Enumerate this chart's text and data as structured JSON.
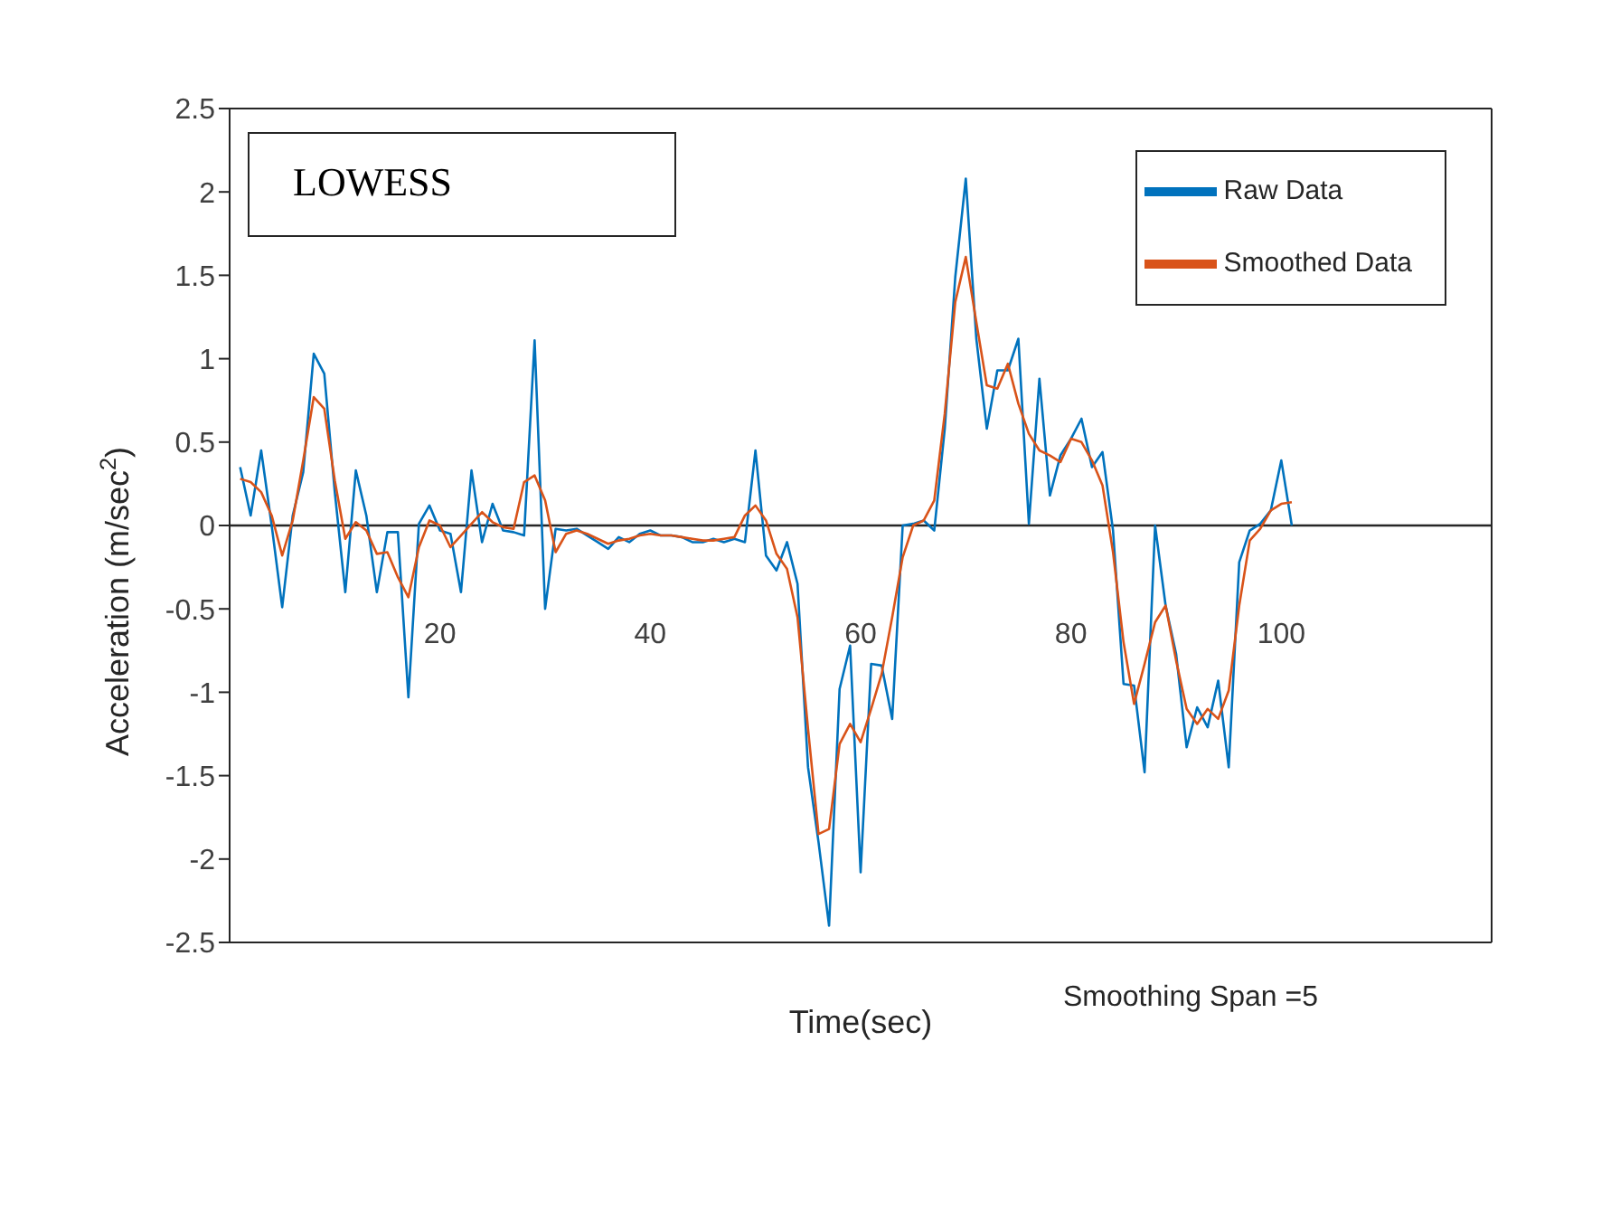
{
  "chart_data": {
    "type": "line",
    "xlabel": "Time(sec)",
    "ylabel": "Acceleration (m/sec$^{2}$)",
    "annotations": [
      "LOWESS",
      "Smoothing Span =5"
    ],
    "x": [
      1,
      2,
      3,
      4,
      5,
      6,
      7,
      8,
      9,
      10,
      11,
      12,
      13,
      14,
      15,
      16,
      17,
      18,
      19,
      20,
      21,
      22,
      23,
      24,
      25,
      26,
      27,
      28,
      29,
      30,
      31,
      32,
      33,
      34,
      35,
      36,
      37,
      38,
      39,
      40,
      41,
      42,
      43,
      44,
      45,
      46,
      47,
      48,
      49,
      50,
      51,
      52,
      53,
      54,
      55,
      56,
      57,
      58,
      59,
      60,
      61,
      62,
      63,
      64,
      65,
      66,
      67,
      68,
      69,
      70,
      71,
      72,
      73,
      74,
      75,
      76,
      77,
      78,
      79,
      80,
      81,
      82,
      83,
      84,
      85,
      86,
      87,
      88,
      89,
      90,
      91,
      92,
      93,
      94,
      95,
      96,
      97,
      98,
      99,
      100,
      101
    ],
    "series": [
      {
        "name": "Raw Data",
        "color": "#0072bd",
        "values": [
          0.35,
          0.06,
          0.45,
          0.0,
          -0.49,
          0.06,
          0.32,
          1.03,
          0.91,
          0.2,
          -0.4,
          0.33,
          0.06,
          -0.4,
          -0.04,
          -0.04,
          -1.03,
          0.01,
          0.12,
          -0.03,
          -0.05,
          -0.4,
          0.33,
          -0.1,
          0.13,
          -0.03,
          -0.04,
          -0.06,
          1.11,
          -0.5,
          -0.02,
          -0.03,
          -0.02,
          -0.06,
          -0.1,
          -0.14,
          -0.07,
          -0.1,
          -0.05,
          -0.03,
          -0.06,
          -0.06,
          -0.07,
          -0.1,
          -0.1,
          -0.08,
          -0.1,
          -0.08,
          -0.1,
          0.45,
          -0.18,
          -0.27,
          -0.1,
          -0.35,
          -1.45,
          -1.9,
          -2.4,
          -0.98,
          -0.72,
          -2.08,
          -0.83,
          -0.84,
          -1.16,
          0.0,
          0.01,
          0.03,
          -0.03,
          0.58,
          1.49,
          2.08,
          1.12,
          0.58,
          0.93,
          0.93,
          1.12,
          0.01,
          0.88,
          0.18,
          0.42,
          0.52,
          0.64,
          0.35,
          0.44,
          -0.03,
          -0.95,
          -0.96,
          -1.48,
          0.0,
          -0.48,
          -0.77,
          -1.33,
          -1.09,
          -1.21,
          -0.93,
          -1.45,
          -0.22,
          -0.03,
          0.01,
          0.09,
          0.39,
          0.0
        ]
      },
      {
        "name": "Smoothed Data",
        "color": "#d95319",
        "values": [
          0.28,
          0.26,
          0.2,
          0.06,
          -0.18,
          0.03,
          0.39,
          0.77,
          0.7,
          0.27,
          -0.08,
          0.02,
          -0.03,
          -0.17,
          -0.16,
          -0.31,
          -0.43,
          -0.13,
          0.03,
          0.0,
          -0.13,
          -0.06,
          0.01,
          0.08,
          0.02,
          -0.01,
          -0.02,
          0.26,
          0.3,
          0.15,
          -0.16,
          -0.05,
          -0.03,
          -0.05,
          -0.08,
          -0.11,
          -0.09,
          -0.08,
          -0.06,
          -0.05,
          -0.06,
          -0.06,
          -0.07,
          -0.08,
          -0.09,
          -0.09,
          -0.08,
          -0.07,
          0.06,
          0.12,
          0.03,
          -0.17,
          -0.26,
          -0.55,
          -1.22,
          -1.85,
          -1.82,
          -1.31,
          -1.19,
          -1.3,
          -1.1,
          -0.89,
          -0.55,
          -0.19,
          0.0,
          0.03,
          0.15,
          0.67,
          1.34,
          1.61,
          1.22,
          0.84,
          0.82,
          0.97,
          0.73,
          0.55,
          0.45,
          0.42,
          0.38,
          0.52,
          0.5,
          0.39,
          0.24,
          -0.16,
          -0.7,
          -1.07,
          -0.83,
          -0.58,
          -0.48,
          -0.81,
          -1.1,
          -1.19,
          -1.1,
          -1.16,
          -0.99,
          -0.48,
          -0.09,
          -0.02,
          0.09,
          0.13,
          0.14
        ]
      }
    ],
    "xlim": [
      0,
      120
    ],
    "xticks": [
      20,
      40,
      60,
      80,
      100
    ],
    "ylim": [
      -2.5,
      2.5
    ],
    "yticks": [
      -2.5,
      -2,
      -1.5,
      -1,
      -0.5,
      0,
      0.5,
      1,
      1.5,
      2,
      2.5
    ],
    "ref_lines": [
      {
        "axis": "y",
        "value": 0,
        "color": "#262626"
      }
    ],
    "grid": false,
    "legend": "top right",
    "marker": "none",
    "line_style": "solid"
  }
}
